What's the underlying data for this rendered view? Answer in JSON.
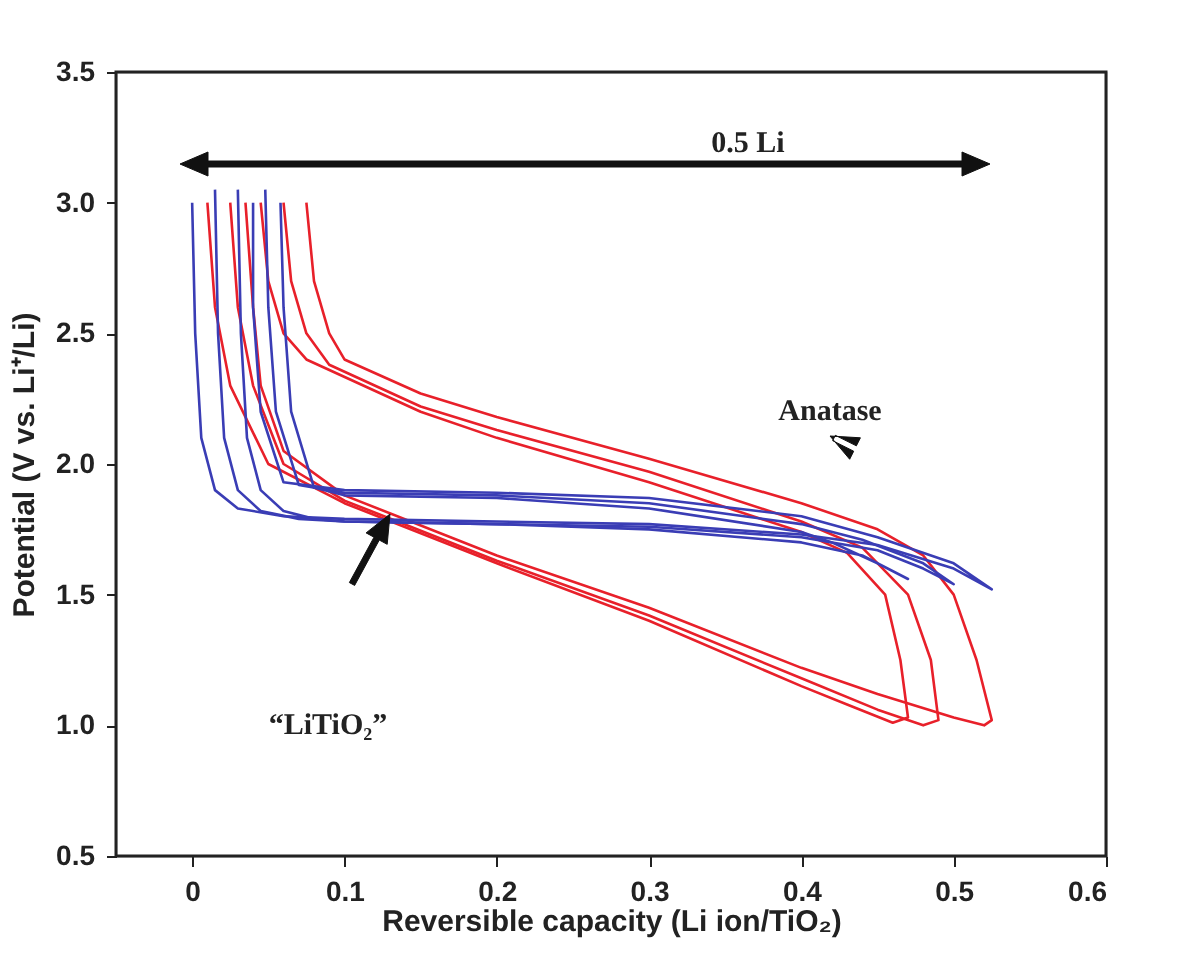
{
  "chart_data": {
    "type": "line",
    "xlabel": "Reversible capacity (Li ion/TiO₂)",
    "ylabel": "Potential (V vs. Li⁺/Li)",
    "xlim": [
      -0.05,
      0.6
    ],
    "xticks": [
      0,
      0.1,
      0.2,
      0.3,
      0.4,
      0.5,
      0.6
    ],
    "ylim": [
      0.5,
      3.5
    ],
    "yticks": [
      {
        "value": 0.5,
        "label": "0.5"
      },
      {
        "value": 1,
        "label": "1.0"
      },
      {
        "value": 1.5,
        "label": "1.5"
      },
      {
        "value": 2,
        "label": "2.0"
      },
      {
        "value": 2.5,
        "label": "2.5"
      },
      {
        "value": 3,
        "label": "3.0"
      },
      {
        "value": 3.5,
        "label": "3.5"
      }
    ],
    "grid": false,
    "legend": false,
    "marker": "none",
    "line_style": "solid",
    "series": [
      {
        "color": "#e8202a",
        "x": [
          0.075,
          0.08,
          0.09,
          0.1,
          0.15,
          0.2,
          0.3,
          0.4,
          0.45,
          0.48,
          0.5,
          0.515,
          0.525,
          0.52,
          0.5,
          0.45,
          0.4,
          0.3,
          0.2,
          0.1,
          0.06,
          0.045,
          0.04,
          0.035
        ],
        "values": [
          3.0,
          2.7,
          2.5,
          2.4,
          2.27,
          2.18,
          2.02,
          1.85,
          1.75,
          1.65,
          1.5,
          1.25,
          1.02,
          1.0,
          1.03,
          1.12,
          1.22,
          1.45,
          1.65,
          1.88,
          2.05,
          2.3,
          2.6,
          3.0
        ]
      },
      {
        "color": "#e8202a",
        "x": [
          0.06,
          0.065,
          0.075,
          0.09,
          0.15,
          0.2,
          0.3,
          0.4,
          0.44,
          0.47,
          0.485,
          0.49,
          0.48,
          0.45,
          0.4,
          0.3,
          0.2,
          0.1,
          0.06,
          0.04,
          0.03,
          0.025
        ],
        "values": [
          3.0,
          2.7,
          2.5,
          2.38,
          2.22,
          2.13,
          1.97,
          1.78,
          1.68,
          1.5,
          1.25,
          1.02,
          1.0,
          1.06,
          1.18,
          1.42,
          1.63,
          1.86,
          2.0,
          2.3,
          2.6,
          3.0
        ]
      },
      {
        "color": "#e8202a",
        "x": [
          0.045,
          0.05,
          0.06,
          0.075,
          0.15,
          0.2,
          0.3,
          0.4,
          0.43,
          0.455,
          0.465,
          0.47,
          0.46,
          0.43,
          0.4,
          0.3,
          0.2,
          0.1,
          0.05,
          0.025,
          0.015,
          0.01
        ],
        "values": [
          3.0,
          2.7,
          2.5,
          2.4,
          2.2,
          2.1,
          1.93,
          1.74,
          1.66,
          1.5,
          1.25,
          1.03,
          1.01,
          1.08,
          1.15,
          1.4,
          1.62,
          1.85,
          2.0,
          2.3,
          2.6,
          3.0
        ]
      },
      {
        "color": "#3a3db5",
        "x": [
          0,
          0.002,
          0.006,
          0.015,
          0.03,
          0.06,
          0.1,
          0.2,
          0.3,
          0.4,
          0.45,
          0.5,
          0.525,
          0.5,
          0.45,
          0.4,
          0.3,
          0.2,
          0.1,
          0.06,
          0.045,
          0.04,
          0.04
        ],
        "values": [
          3.0,
          2.5,
          2.1,
          1.9,
          1.83,
          1.8,
          1.79,
          1.78,
          1.77,
          1.73,
          1.69,
          1.6,
          1.52,
          1.62,
          1.72,
          1.8,
          1.87,
          1.89,
          1.9,
          1.93,
          2.2,
          2.6,
          3.0
        ]
      },
      {
        "color": "#3a3db5",
        "x": [
          0.015,
          0.017,
          0.021,
          0.03,
          0.045,
          0.07,
          0.1,
          0.2,
          0.3,
          0.4,
          0.45,
          0.48,
          0.5,
          0.48,
          0.44,
          0.4,
          0.3,
          0.2,
          0.1,
          0.07,
          0.055,
          0.05,
          0.048
        ],
        "values": [
          3.05,
          2.5,
          2.1,
          1.9,
          1.82,
          1.79,
          1.78,
          1.77,
          1.76,
          1.72,
          1.67,
          1.6,
          1.54,
          1.62,
          1.71,
          1.77,
          1.85,
          1.88,
          1.89,
          1.92,
          2.2,
          2.6,
          3.05
        ]
      },
      {
        "color": "#3a3db5",
        "x": [
          0.03,
          0.032,
          0.036,
          0.045,
          0.06,
          0.08,
          0.1,
          0.2,
          0.3,
          0.4,
          0.44,
          0.47,
          0.45,
          0.42,
          0.4,
          0.3,
          0.2,
          0.1,
          0.08,
          0.065,
          0.06,
          0.058
        ],
        "values": [
          3.05,
          2.5,
          2.1,
          1.9,
          1.82,
          1.79,
          1.78,
          1.77,
          1.75,
          1.7,
          1.65,
          1.56,
          1.62,
          1.7,
          1.74,
          1.83,
          1.87,
          1.88,
          1.91,
          2.2,
          2.6,
          3.0
        ]
      }
    ],
    "annotations": [
      "0.5 Li",
      "Anatase",
      "“LiTiO₂”"
    ]
  }
}
